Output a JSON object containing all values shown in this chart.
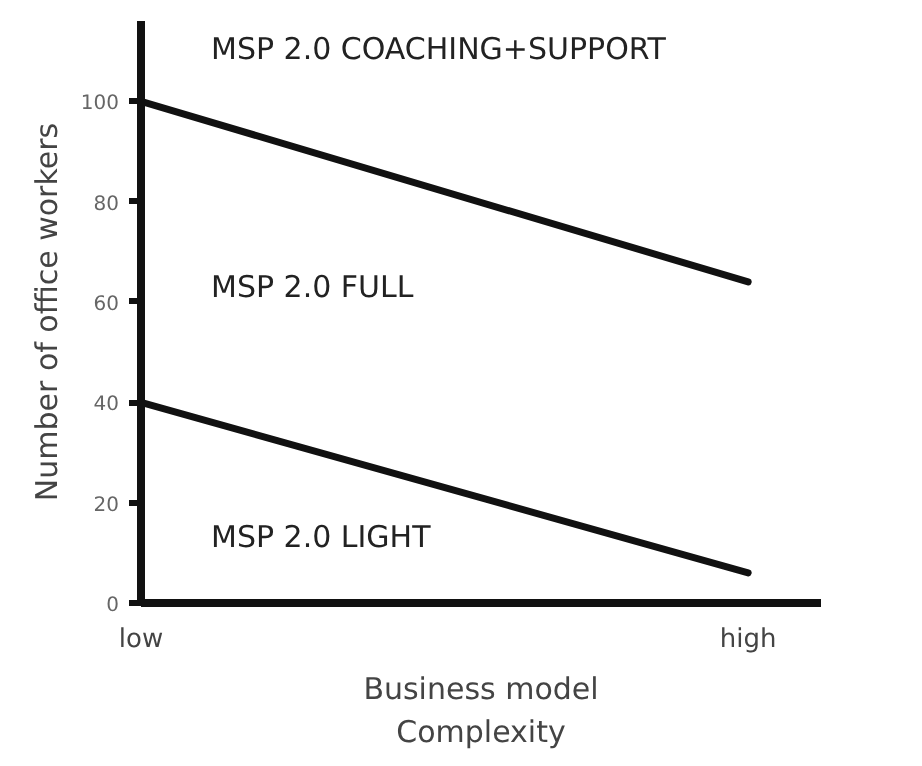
{
  "chart_data": {
    "type": "line",
    "xlabel": "Business model\nComplexity",
    "ylabel": "Number of office workers",
    "categories": [
      "low",
      "high"
    ],
    "series": [
      {
        "color": "#111111",
        "values": [
          100,
          64
        ]
      },
      {
        "color": "#111111",
        "values": [
          40,
          6
        ]
      }
    ],
    "ylim": [
      0,
      116
    ],
    "yticks": [
      0,
      20,
      40,
      60,
      80,
      100
    ],
    "annotations": [
      "MSP 2.0 COACHING+SUPPORT",
      "MSP 2.0 FULL",
      "MSP 2.0 LIGHT"
    ],
    "grid": false,
    "marker": "none",
    "line_style": "solid"
  }
}
